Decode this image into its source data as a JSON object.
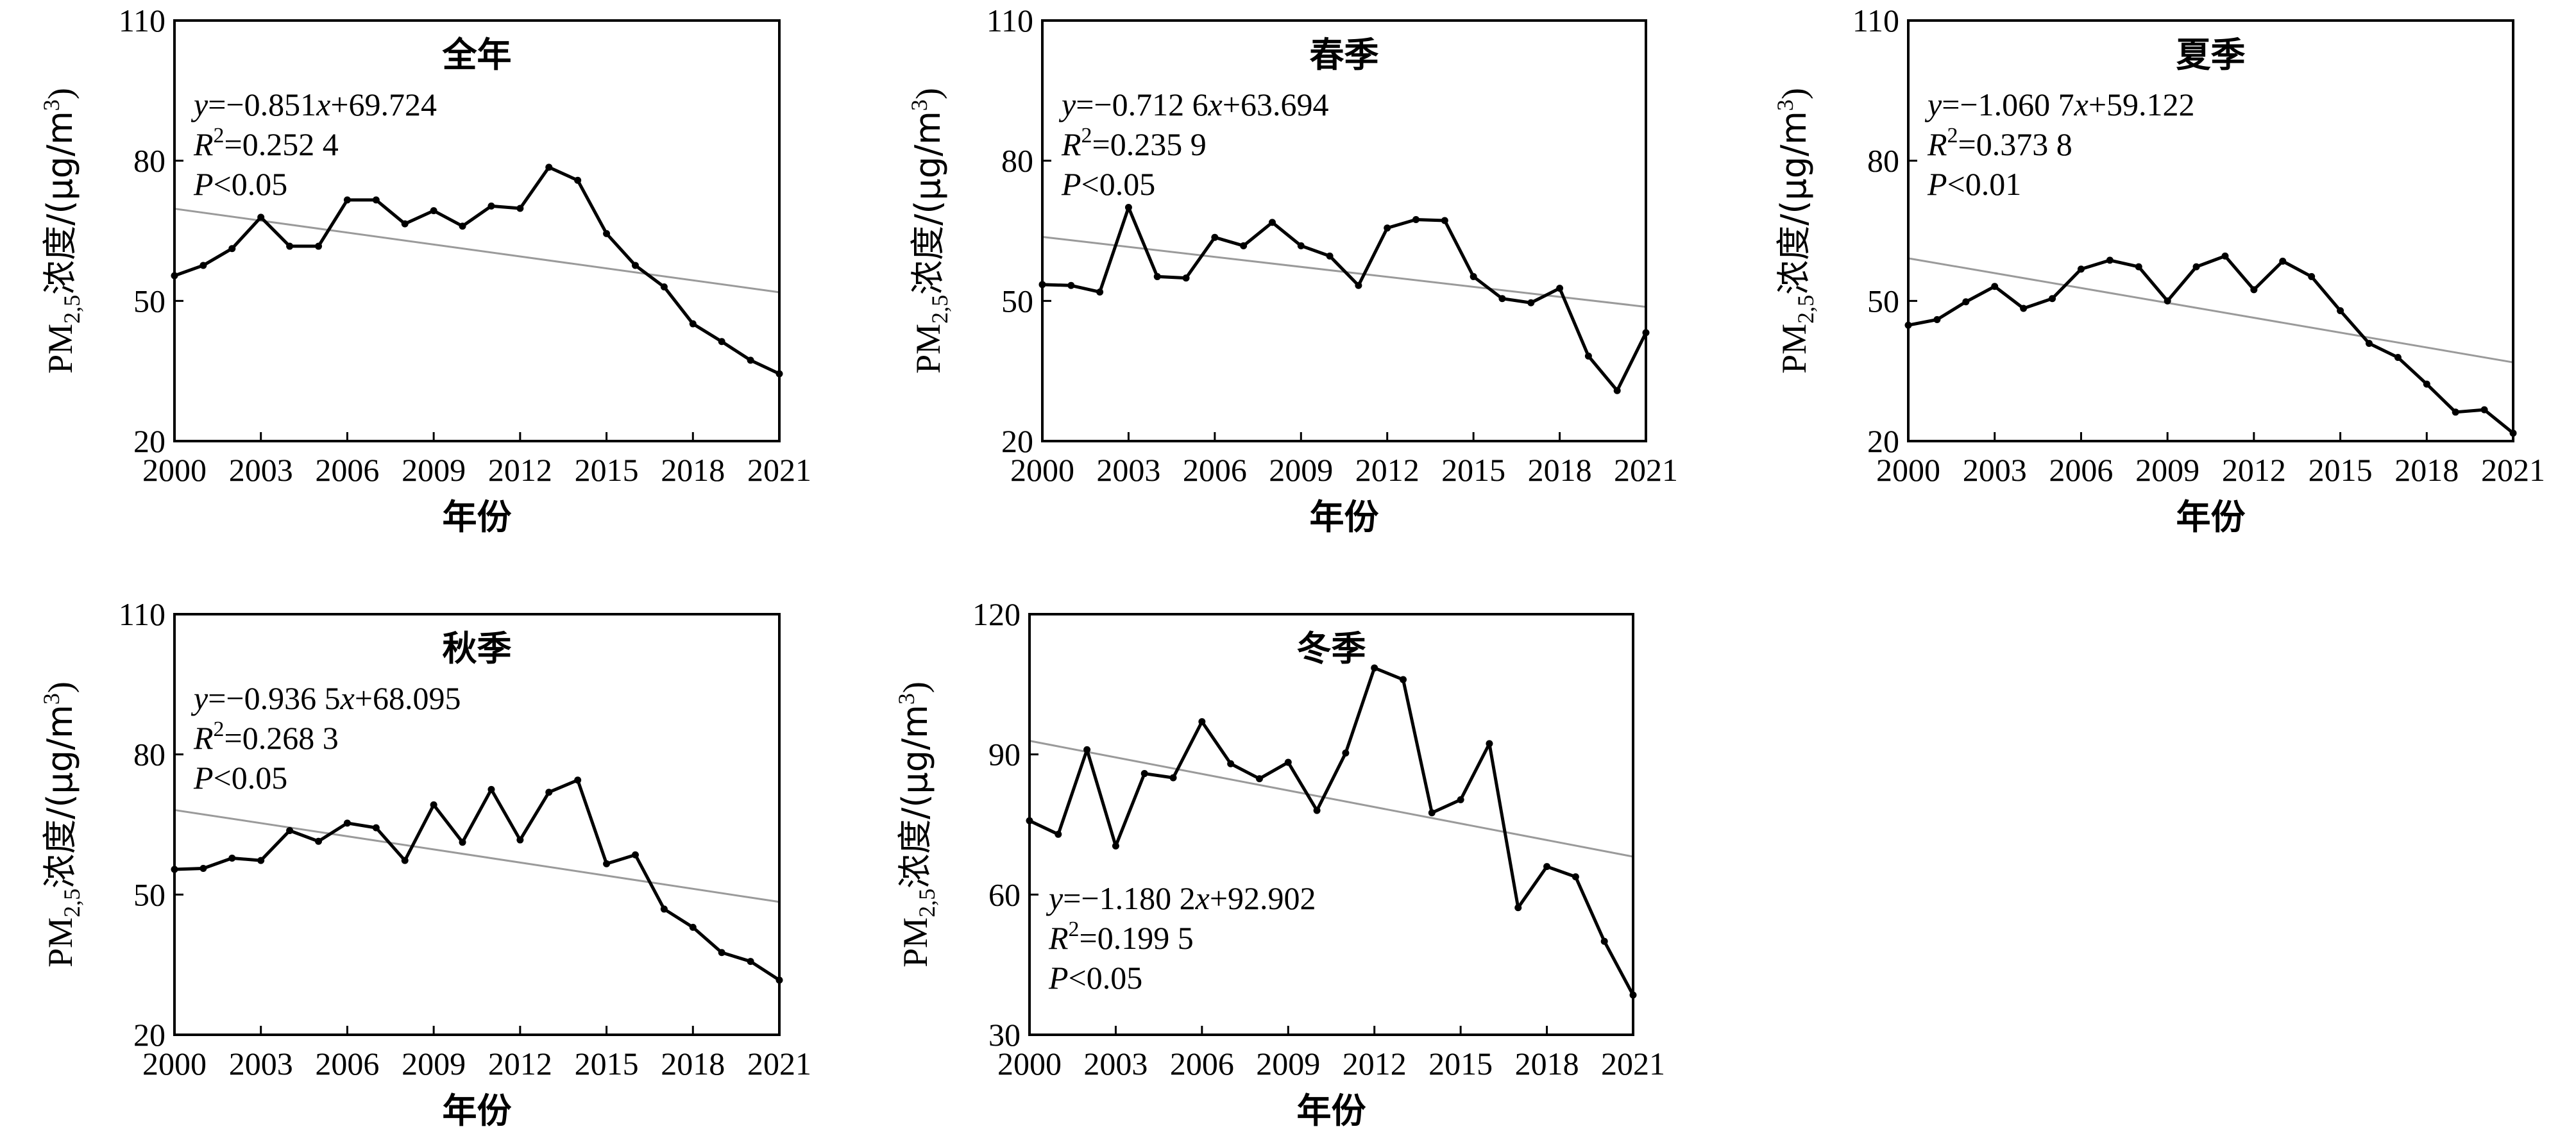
{
  "charts": [
    {
      "title": "全年",
      "ylabel": "PM2,5浓度/(μg/m3)",
      "ylabel_parts": [
        "PM",
        "2,5",
        "浓度/(μg/m",
        "3",
        ")"
      ],
      "xlabel": "年份",
      "ylim": [
        20,
        110
      ],
      "yticks": [
        20,
        50,
        80,
        110
      ],
      "xticks": [
        2000,
        2003,
        2006,
        2009,
        2012,
        2015,
        2018,
        2021
      ],
      "annotation": [
        "y=−0.851x+69.724",
        "R2=0.252 4",
        "P<0.05"
      ],
      "annotation_position": "top-left"
    },
    {
      "title": "春季",
      "ylabel": "PM2,5浓度/(μg/m3)",
      "ylabel_parts": [
        "PM",
        "2,5",
        "浓度/(μg/m",
        "3",
        ")"
      ],
      "xlabel": "年份",
      "ylim": [
        20,
        110
      ],
      "yticks": [
        20,
        50,
        80,
        110
      ],
      "xticks": [
        2000,
        2003,
        2006,
        2009,
        2012,
        2015,
        2018,
        2021
      ],
      "annotation": [
        "y=−0.712 6x+63.694",
        "R2=0.235 9",
        "P<0.05"
      ],
      "annotation_position": "top-left"
    },
    {
      "title": "夏季",
      "ylabel": "PM2,5浓度/(μg/m3)",
      "ylabel_parts": [
        "PM",
        "2,5",
        "浓度/(μg/m",
        "3",
        ")"
      ],
      "xlabel": "年份",
      "ylim": [
        20,
        110
      ],
      "yticks": [
        20,
        50,
        80,
        110
      ],
      "xticks": [
        2000,
        2003,
        2006,
        2009,
        2012,
        2015,
        2018,
        2021
      ],
      "annotation": [
        "y=−1.060 7x+59.122",
        "R2=0.373 8",
        "P<0.01"
      ],
      "annotation_position": "top-left"
    },
    {
      "title": "秋季",
      "ylabel": "PM2,5浓度/(μg/m3)",
      "ylabel_parts": [
        "PM",
        "2,5",
        "浓度/(μg/m",
        "3",
        ")"
      ],
      "xlabel": "年份",
      "ylim": [
        20,
        110
      ],
      "yticks": [
        20,
        50,
        80,
        110
      ],
      "xticks": [
        2000,
        2003,
        2006,
        2009,
        2012,
        2015,
        2018,
        2021
      ],
      "annotation": [
        "y=−0.936 5x+68.095",
        "R2=0.268 3",
        "P<0.05"
      ],
      "annotation_position": "top-left"
    },
    {
      "title": "冬季",
      "ylabel": "PM2,5浓度/(μg/m3)",
      "ylabel_parts": [
        "PM",
        "2,5",
        "浓度/(μg/m",
        "3",
        ")"
      ],
      "xlabel": "年份",
      "ylim": [
        30,
        120
      ],
      "yticks": [
        30,
        60,
        90,
        120
      ],
      "xticks": [
        2000,
        2003,
        2006,
        2009,
        2012,
        2015,
        2018,
        2021
      ],
      "annotation": [
        "y=−1.180 2x+92.902",
        "R2=0.199 5",
        "P<0.05"
      ],
      "annotation_position": "bottom-left"
    }
  ],
  "chart_data": [
    {
      "type": "line",
      "x": [
        2000,
        2001,
        2002,
        2003,
        2004,
        2005,
        2006,
        2007,
        2008,
        2009,
        2010,
        2011,
        2012,
        2013,
        2014,
        2015,
        2016,
        2017,
        2018,
        2019,
        2020,
        2021
      ],
      "series": [
        {
          "values": [
            55.4,
            57.6,
            61.2,
            67.9,
            61.7,
            61.7,
            71.6,
            71.6,
            66.5,
            69.3,
            66.0,
            70.3,
            69.8,
            78.6,
            75.8,
            64.4,
            57.6,
            53.0,
            45.1,
            41.3,
            37.3,
            34.4
          ]
        }
      ],
      "trend": {
        "slope": -0.851,
        "intercept": 69.724
      },
      "xlim": [
        2000,
        2021
      ],
      "ylim": [
        20,
        110
      ]
    },
    {
      "type": "line",
      "x": [
        2000,
        2001,
        2002,
        2003,
        2004,
        2005,
        2006,
        2007,
        2008,
        2009,
        2010,
        2011,
        2012,
        2013,
        2014,
        2015,
        2016,
        2017,
        2018,
        2019,
        2020,
        2021
      ],
      "series": [
        {
          "values": [
            53.5,
            53.3,
            51.9,
            70.0,
            55.2,
            54.9,
            63.6,
            61.8,
            66.8,
            61.8,
            59.6,
            53.3,
            65.6,
            67.4,
            67.2,
            55.2,
            50.5,
            49.6,
            52.7,
            38.2,
            30.8,
            43.2
          ]
        }
      ],
      "trend": {
        "slope": -0.7126,
        "intercept": 63.694
      },
      "xlim": [
        2000,
        2021
      ],
      "ylim": [
        20,
        110
      ]
    },
    {
      "type": "line",
      "x": [
        2000,
        2001,
        2002,
        2003,
        2004,
        2005,
        2006,
        2007,
        2008,
        2009,
        2010,
        2011,
        2012,
        2013,
        2014,
        2015,
        2016,
        2017,
        2018,
        2019,
        2020,
        2021
      ],
      "series": [
        {
          "values": [
            44.8,
            46.0,
            49.8,
            53.1,
            48.4,
            50.5,
            56.8,
            58.7,
            57.3,
            50.0,
            57.3,
            59.6,
            52.4,
            58.5,
            55.2,
            47.9,
            40.9,
            37.9,
            32.2,
            26.2,
            26.7,
            21.7
          ]
        }
      ],
      "trend": {
        "slope": -1.0607,
        "intercept": 59.122
      },
      "xlim": [
        2000,
        2021
      ],
      "ylim": [
        20,
        110
      ]
    },
    {
      "type": "line",
      "x": [
        2000,
        2001,
        2002,
        2003,
        2004,
        2005,
        2006,
        2007,
        2008,
        2009,
        2010,
        2011,
        2012,
        2013,
        2014,
        2015,
        2016,
        2017,
        2018,
        2019,
        2020,
        2021
      ],
      "series": [
        {
          "values": [
            55.4,
            55.6,
            57.8,
            57.3,
            63.7,
            61.4,
            65.3,
            64.3,
            57.3,
            69.2,
            61.2,
            72.5,
            61.7,
            71.9,
            74.5,
            56.6,
            58.5,
            46.9,
            43.0,
            37.6,
            35.7,
            31.7
          ]
        }
      ],
      "trend": {
        "slope": -0.9365,
        "intercept": 68.095
      },
      "xlim": [
        2000,
        2021
      ],
      "ylim": [
        20,
        110
      ]
    },
    {
      "type": "line",
      "x": [
        2000,
        2001,
        2002,
        2003,
        2004,
        2005,
        2006,
        2007,
        2008,
        2009,
        2010,
        2011,
        2012,
        2013,
        2014,
        2015,
        2016,
        2017,
        2018,
        2019,
        2020,
        2021
      ],
      "series": [
        {
          "values": [
            75.8,
            72.9,
            91.0,
            70.4,
            85.9,
            85.0,
            97.0,
            88.0,
            84.8,
            88.3,
            78.0,
            90.3,
            108.5,
            106.0,
            77.5,
            80.3,
            92.3,
            57.2,
            66.0,
            63.8,
            50.0,
            38.5
          ]
        }
      ],
      "trend": {
        "slope": -1.1802,
        "intercept": 92.902
      },
      "xlim": [
        2000,
        2021
      ],
      "ylim": [
        30,
        120
      ]
    }
  ]
}
